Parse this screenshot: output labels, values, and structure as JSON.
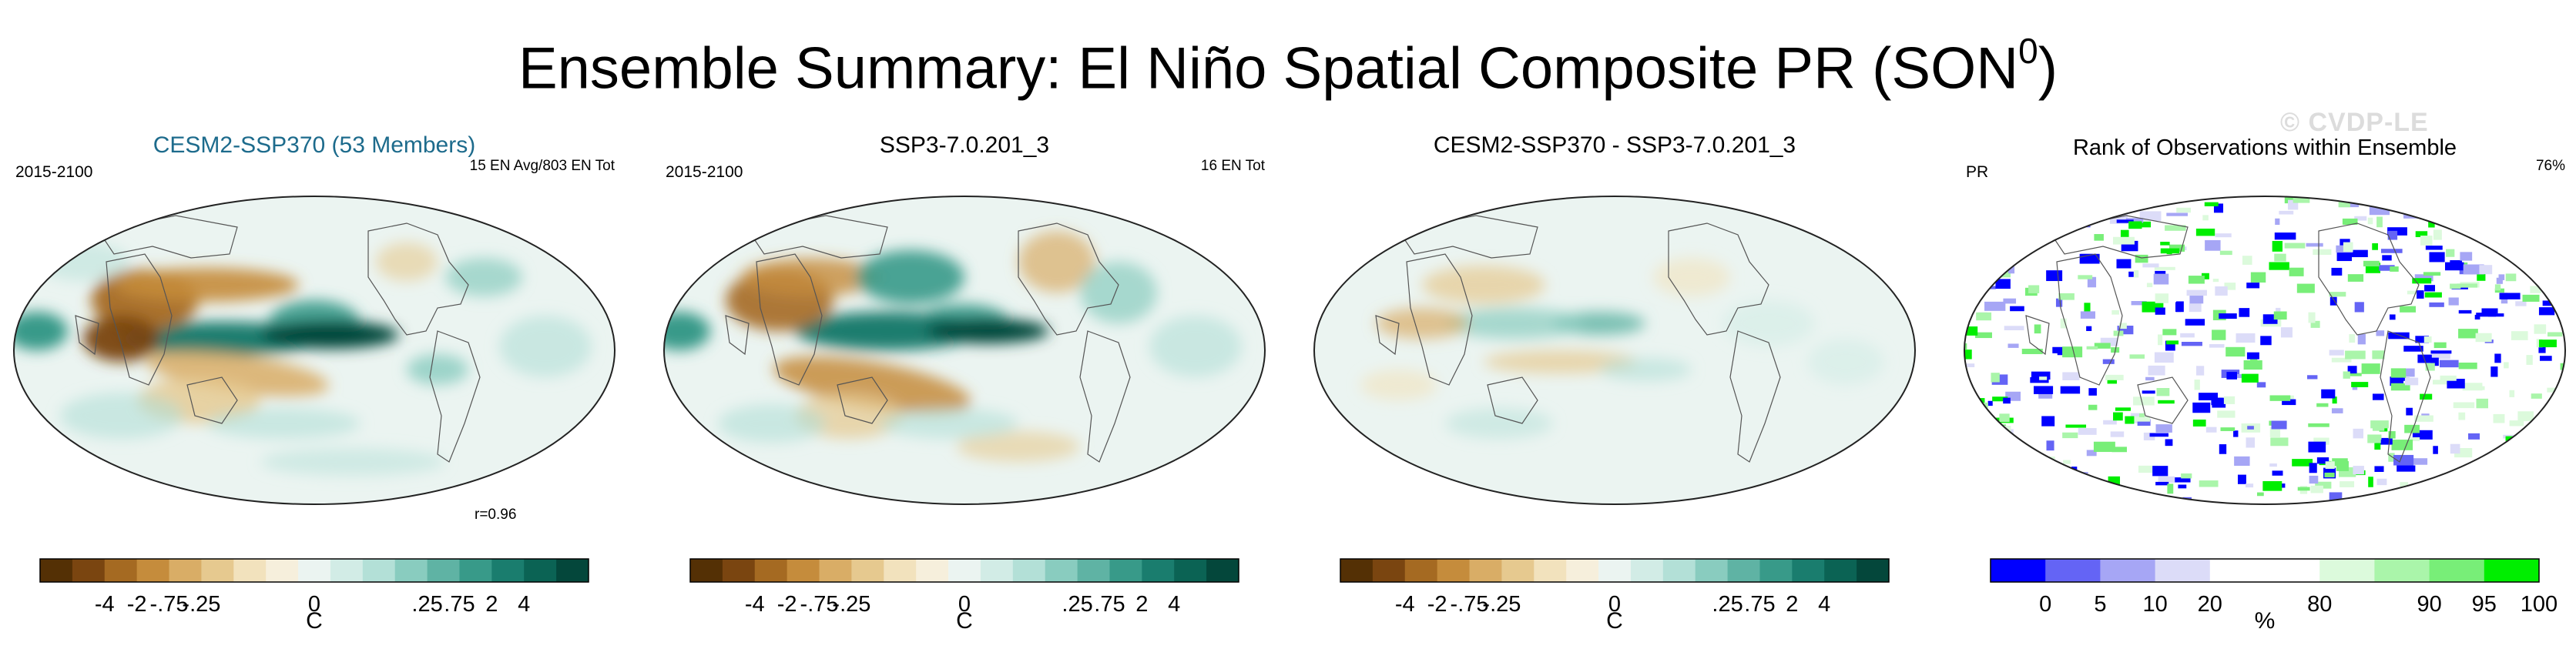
{
  "page": {
    "title": "Ensemble Summary: El Niño Spatial Composite PR (SON",
    "title_superscript": "0",
    "title_close": ")",
    "watermark": "© CVDP-LE"
  },
  "panels": [
    {
      "title": "CESM2-SSP370 (53 Members)",
      "left_label": "2015-2100",
      "right_label": "15 EN Avg/803 EN Tot",
      "corr_label": "r=0.96",
      "colorbar_labels": [
        "-4",
        "-2",
        "-.75",
        "-.25",
        "0",
        ".25",
        ".75",
        "2",
        "4"
      ],
      "unit": "C"
    },
    {
      "title": "SSP3-7.0.201_3",
      "left_label": "2015-2100",
      "right_label": "16 EN Tot",
      "colorbar_labels": [
        "-4",
        "-2",
        "-.75",
        "-.25",
        "0",
        ".25",
        ".75",
        "2",
        "4"
      ],
      "unit": "C"
    },
    {
      "title": "CESM2-SSP370 - SSP3-7.0.201_3",
      "colorbar_labels": [
        "-4",
        "-2",
        "-.75",
        "-.25",
        "0",
        ".25",
        ".75",
        "2",
        "4"
      ],
      "unit": "C"
    },
    {
      "title": "Rank of Observations within Ensemble",
      "left_label": "PR",
      "right_label": "76%",
      "colorbar_labels": [
        "0",
        "5",
        "10",
        "20",
        "80",
        "90",
        "95",
        "100"
      ],
      "unit": "%"
    }
  ],
  "chart_data": [
    {
      "type": "heatmap",
      "title": "CESM2-SSP370 (53 Members)",
      "projection": "robinson",
      "colorbar": {
        "colors": [
          "#543005",
          "#7a4510",
          "#a56a22",
          "#c58c3c",
          "#d9ad66",
          "#e6c98f",
          "#f2e2bd",
          "#f6efdc",
          "#ebf4f1",
          "#d2ece6",
          "#b3e0d7",
          "#89ccbf",
          "#5fb3a4",
          "#389a89",
          "#1a7d6e",
          "#0b6354",
          "#04473b"
        ],
        "labels": [
          "-4",
          "-2",
          "-.75",
          "-.25",
          "0",
          ".25",
          ".75",
          "2",
          "4"
        ],
        "unit": "C"
      }
    },
    {
      "type": "heatmap",
      "title": "SSP3-7.0.201_3",
      "projection": "robinson",
      "colorbar": {
        "colors": [
          "#543005",
          "#7a4510",
          "#a56a22",
          "#c58c3c",
          "#d9ad66",
          "#e6c98f",
          "#f2e2bd",
          "#f6efdc",
          "#ebf4f1",
          "#d2ece6",
          "#b3e0d7",
          "#89ccbf",
          "#5fb3a4",
          "#389a89",
          "#1a7d6e",
          "#0b6354",
          "#04473b"
        ],
        "labels": [
          "-4",
          "-2",
          "-.75",
          "-.25",
          "0",
          ".25",
          ".75",
          "2",
          "4"
        ],
        "unit": "C"
      }
    },
    {
      "type": "heatmap",
      "title": "CESM2-SSP370 - SSP3-7.0.201_3",
      "projection": "robinson",
      "colorbar": {
        "colors": [
          "#543005",
          "#7a4510",
          "#a56a22",
          "#c58c3c",
          "#d9ad66",
          "#e6c98f",
          "#f2e2bd",
          "#f6efdc",
          "#ebf4f1",
          "#d2ece6",
          "#b3e0d7",
          "#89ccbf",
          "#5fb3a4",
          "#389a89",
          "#1a7d6e",
          "#0b6354",
          "#04473b"
        ],
        "labels": [
          "-4",
          "-2",
          "-.75",
          "-.25",
          "0",
          ".25",
          ".75",
          "2",
          "4"
        ],
        "unit": "C"
      }
    },
    {
      "type": "heatmap",
      "title": "Rank of Observations within Ensemble",
      "projection": "robinson",
      "colorbar": {
        "colors": [
          "#0000ff",
          "#6464f5",
          "#a6a6f5",
          "#dcdcf8",
          "#ffffff",
          "#ffffff",
          "#dcfadc",
          "#aaf5aa",
          "#78ee78",
          "#00ee00"
        ],
        "labels": [
          "0",
          "5",
          "10",
          "20",
          "80",
          "90",
          "95",
          "100"
        ],
        "unit": "%"
      }
    }
  ]
}
